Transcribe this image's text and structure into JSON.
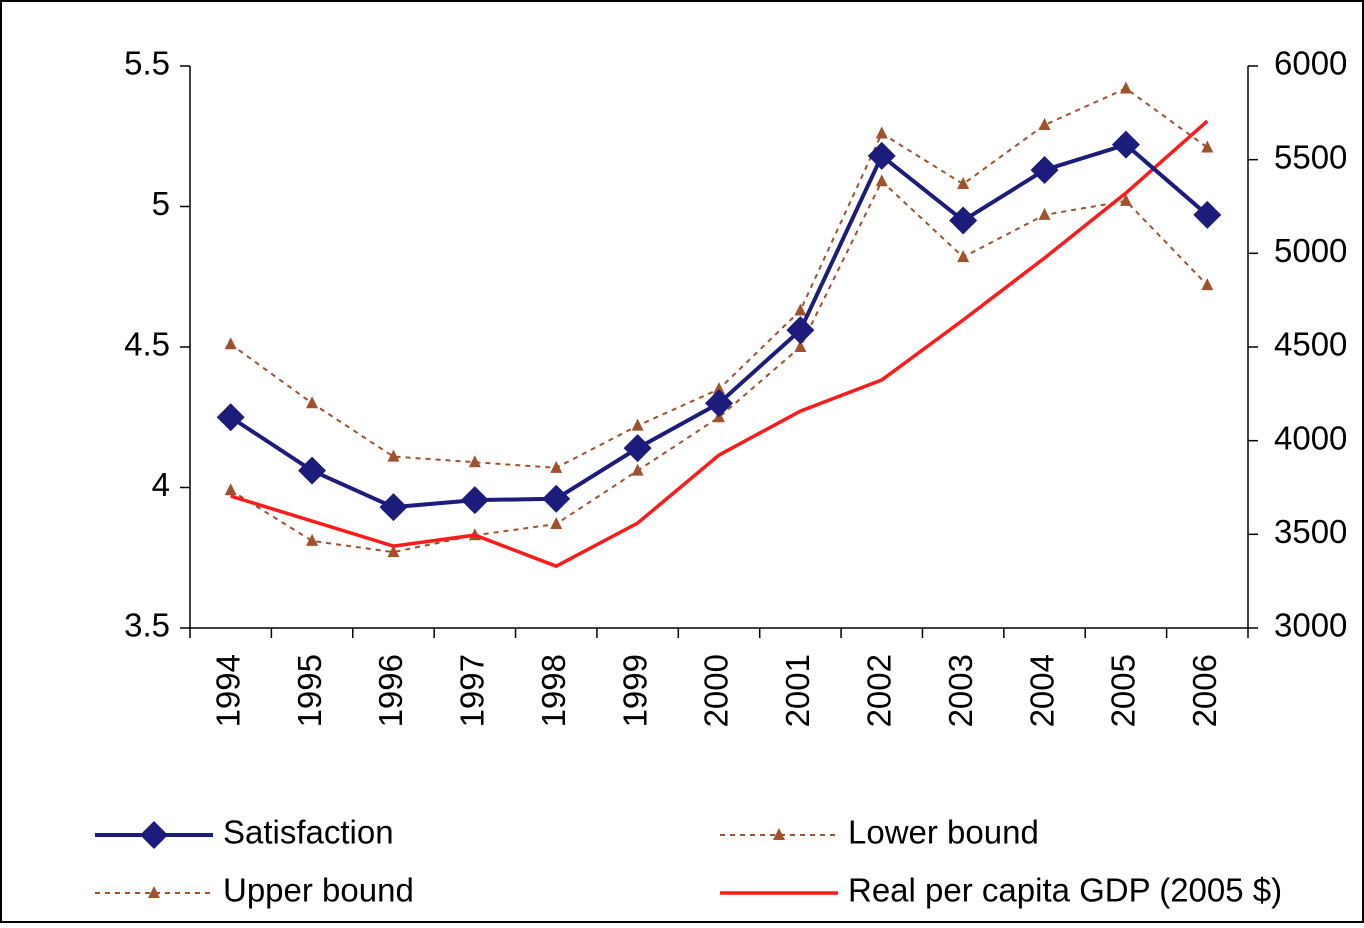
{
  "chart_data": {
    "type": "line",
    "categories": [
      "1994",
      "1995",
      "1996",
      "1997",
      "1998",
      "1999",
      "2000",
      "2001",
      "2002",
      "2003",
      "2004",
      "2005",
      "2006"
    ],
    "series": [
      {
        "name": "Satisfaction",
        "color": "#1c1c7c",
        "marker": "diamond",
        "dash": "solid",
        "values": [
          4.25,
          4.06,
          3.93,
          3.955,
          3.96,
          4.14,
          4.3,
          4.56,
          5.18,
          4.95,
          5.13,
          5.22,
          4.97
        ]
      },
      {
        "name": "Lower bound",
        "color": "#a0522d",
        "marker": "triangle",
        "dash": "dotted",
        "values": [
          3.99,
          3.81,
          3.77,
          3.83,
          3.87,
          4.06,
          4.25,
          4.5,
          5.09,
          4.82,
          4.97,
          5.02,
          4.72
        ]
      },
      {
        "name": "Upper bound",
        "color": "#a0522d",
        "marker": "triangle",
        "dash": "dotted",
        "values": [
          4.51,
          4.3,
          4.11,
          4.09,
          4.07,
          4.22,
          4.35,
          4.63,
          5.26,
          5.08,
          5.29,
          5.42,
          5.21
        ]
      },
      {
        "name": "Real per capita GDP (2005 $)",
        "color": "#ff1a1a",
        "marker": "none",
        "dash": "solid",
        "axis": "y2",
        "values": [
          3704,
          3571,
          3437,
          3496,
          3330,
          3560,
          3923,
          4158,
          4324,
          4644,
          4975,
          5322,
          5706
        ]
      }
    ],
    "ylim": [
      3.5,
      5.5
    ],
    "yticks": [
      3.5,
      4,
      4.5,
      5,
      5.5
    ],
    "y2lim": [
      3000,
      6000
    ],
    "y2ticks": [
      3000,
      3500,
      4000,
      4500,
      5000,
      5500,
      6000
    ],
    "grid": false,
    "legend": "bottom"
  }
}
